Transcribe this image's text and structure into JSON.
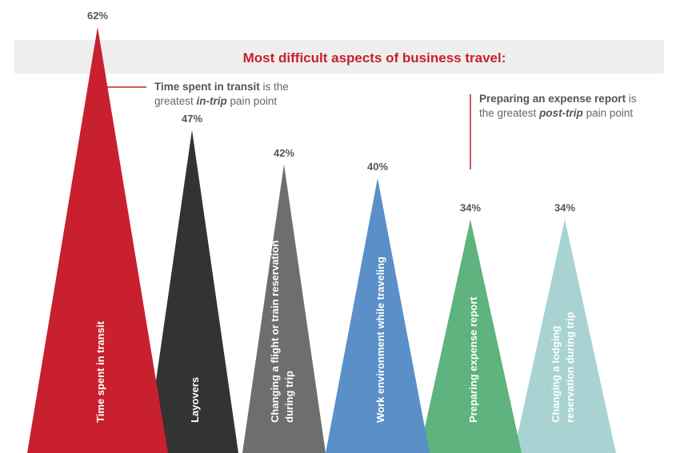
{
  "chart_data": {
    "type": "bar",
    "title": "Most difficult aspects of business travel:",
    "categories": [
      [
        "Time spent in transit"
      ],
      [
        "Layovers"
      ],
      [
        "Changing a flight or train reservation",
        "during trip"
      ],
      [
        "Work environment while traveling"
      ],
      [
        "Preparing expense report"
      ],
      [
        "Changing a lodging",
        "reservation during trip"
      ]
    ],
    "values": [
      62,
      47,
      42,
      40,
      34,
      34
    ],
    "value_labels": [
      "62%",
      "47%",
      "42%",
      "40%",
      "34%",
      "34%"
    ],
    "colors": [
      "#c8202e",
      "#333333",
      "#6e6e6e",
      "#5b8fc7",
      "#5fb37e",
      "#a9d3d3"
    ],
    "annotations": [
      {
        "parts": [
          [
            {
              "t": "Time spent in transit",
              "s": "b"
            },
            {
              "t": " is the",
              "s": ""
            }
          ],
          [
            {
              "t": "greatest ",
              "s": ""
            },
            {
              "t": "in-trip",
              "s": "bi"
            },
            {
              "t": " pain point",
              "s": ""
            }
          ]
        ]
      },
      {
        "parts": [
          [
            {
              "t": "Preparing an expense report",
              "s": "b"
            },
            {
              "t": " is",
              "s": ""
            }
          ],
          [
            {
              "t": "the greatest ",
              "s": ""
            },
            {
              "t": "post-trip",
              "s": "bi"
            },
            {
              "t": " pain point",
              "s": ""
            }
          ]
        ]
      }
    ]
  }
}
